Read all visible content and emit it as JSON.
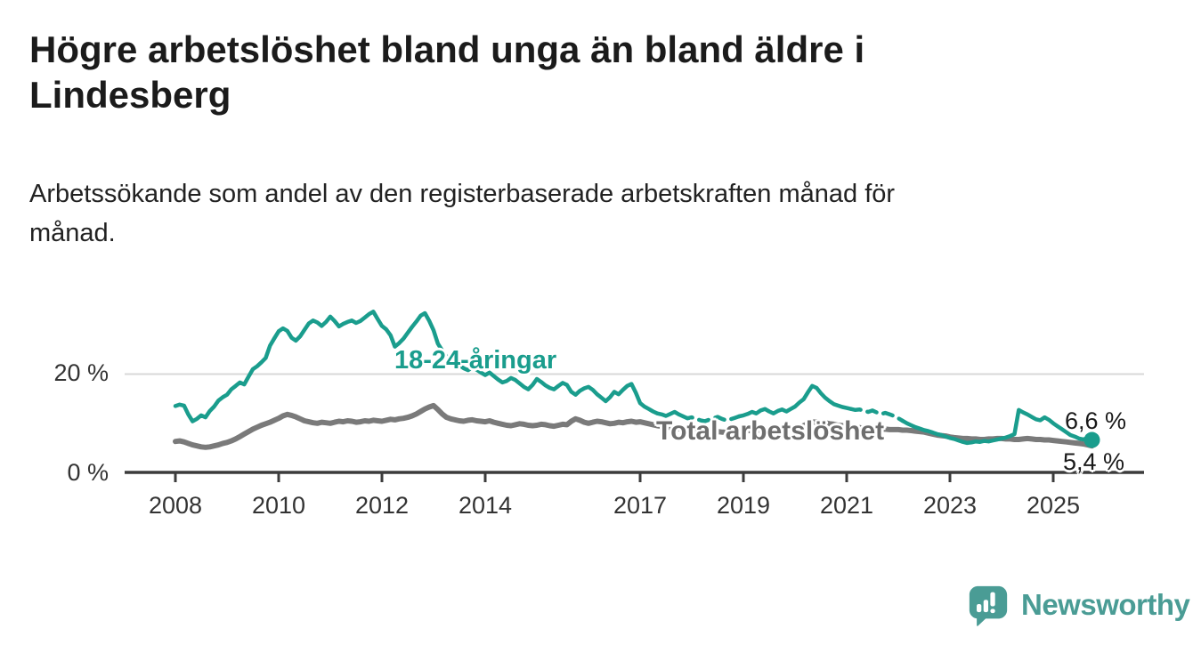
{
  "header": {
    "title_lines": [
      "Högre arbetslöshet bland unga än bland äldre i",
      "Lindesberg"
    ],
    "subtitle_lines": [
      "Arbetssökande som andel av den registerbaserade arbetskraften månad för",
      "månad."
    ]
  },
  "chart_data": {
    "type": "line",
    "title": "Högre arbetslöshet bland unga än bland äldre i Lindesberg",
    "subtitle": "Arbetssökande som andel av den registerbaserade arbetskraften månad för månad.",
    "unit": "%",
    "frequency": "monthly",
    "x_start": {
      "year": 2008,
      "month": 1
    },
    "x_end": {
      "year": 2025,
      "month": 10
    },
    "x_tick_years": [
      2008,
      2010,
      2012,
      2014,
      2017,
      2019,
      2021,
      2023,
      2025
    ],
    "y_ticks": [
      {
        "value": 20,
        "label": "20 %"
      },
      {
        "value": 0,
        "label": "0 %"
      }
    ],
    "ylim": [
      0,
      36
    ],
    "grid": "horizontal line at 20% only",
    "legend_position": "labels-on-lines",
    "series": [
      {
        "name": "18-24-åringar",
        "color": "#1a9d8d",
        "end_label": "6,6 %",
        "end_value": 6.6,
        "end_dot": true,
        "dashed_year_ranges": [
          [
            2017.8,
            2018.95
          ],
          [
            2021.1,
            2022.05
          ]
        ],
        "values": [
          13.5,
          13.8,
          13.6,
          11.8,
          10.4,
          10.9,
          11.6,
          11.2,
          12.5,
          13.4,
          14.6,
          15.3,
          15.8,
          16.9,
          17.6,
          18.3,
          17.9,
          19.5,
          21.0,
          21.6,
          22.4,
          23.3,
          25.8,
          27.3,
          28.7,
          29.3,
          28.8,
          27.4,
          26.8,
          27.7,
          29.0,
          30.3,
          30.9,
          30.5,
          29.8,
          30.6,
          31.7,
          30.8,
          29.7,
          30.2,
          30.6,
          30.9,
          30.4,
          30.8,
          31.5,
          32.2,
          32.7,
          31.2,
          29.8,
          29.1,
          27.9,
          25.6,
          26.3,
          27.2,
          28.4,
          29.6,
          30.7,
          31.9,
          32.4,
          30.8,
          28.9,
          26.2,
          24.8,
          23.6,
          22.8,
          22.2,
          21.8,
          21.2,
          20.8,
          21.4,
          20.9,
          20.3,
          19.8,
          20.3,
          19.6,
          18.9,
          18.3,
          18.6,
          19.2,
          18.8,
          18.1,
          17.4,
          16.9,
          17.8,
          19.0,
          18.4,
          17.7,
          17.2,
          16.9,
          17.6,
          18.2,
          17.8,
          16.4,
          15.8,
          16.6,
          17.1,
          17.4,
          16.8,
          15.9,
          15.2,
          14.5,
          15.3,
          16.4,
          15.9,
          16.8,
          17.6,
          18.0,
          16.2,
          14.1,
          13.4,
          12.9,
          12.4,
          12.0,
          11.8,
          11.5,
          11.9,
          12.3,
          11.8,
          11.4,
          11.0,
          11.2,
          10.9,
          10.6,
          10.4,
          10.7,
          11.0,
          11.3,
          10.9,
          10.6,
          10.8,
          11.1,
          11.4,
          11.6,
          11.9,
          12.3,
          12.0,
          12.6,
          12.9,
          12.4,
          12.0,
          12.5,
          12.8,
          12.4,
          12.9,
          13.4,
          14.2,
          14.9,
          16.3,
          17.6,
          17.2,
          16.1,
          15.2,
          14.5,
          13.9,
          13.6,
          13.3,
          13.1,
          12.9,
          12.7,
          12.8,
          12.5,
          12.3,
          12.6,
          12.2,
          11.9,
          12.1,
          11.8,
          11.5,
          11.0,
          10.5,
          10.0,
          9.6,
          9.2,
          8.9,
          8.6,
          8.4,
          8.1,
          7.8,
          7.6,
          7.3,
          7.0,
          6.8,
          6.5,
          6.2,
          6.0,
          6.1,
          6.3,
          6.2,
          6.4,
          6.3,
          6.5,
          6.7,
          6.9,
          7.1,
          7.4,
          7.8,
          12.7,
          12.2,
          11.8,
          11.3,
          10.8,
          10.6,
          11.2,
          10.7,
          10.0,
          9.4,
          8.8,
          8.2,
          7.6,
          7.3,
          6.9,
          6.7,
          7.0,
          6.6
        ]
      },
      {
        "name": "Total arbetslöshet",
        "color": "#7a7a7a",
        "end_label": "5,4 %",
        "end_value": 5.4,
        "end_dot": false,
        "dashed_year_ranges": [],
        "values": [
          6.3,
          6.4,
          6.2,
          5.9,
          5.6,
          5.4,
          5.2,
          5.1,
          5.2,
          5.4,
          5.6,
          5.9,
          6.1,
          6.4,
          6.8,
          7.3,
          7.8,
          8.3,
          8.8,
          9.2,
          9.6,
          9.9,
          10.2,
          10.6,
          11.0,
          11.5,
          11.8,
          11.6,
          11.3,
          10.9,
          10.5,
          10.3,
          10.1,
          10.0,
          10.2,
          10.1,
          10.0,
          10.2,
          10.4,
          10.3,
          10.5,
          10.4,
          10.2,
          10.3,
          10.5,
          10.4,
          10.6,
          10.5,
          10.4,
          10.6,
          10.8,
          10.7,
          10.9,
          11.0,
          11.2,
          11.5,
          11.9,
          12.4,
          12.9,
          13.3,
          13.6,
          12.8,
          11.9,
          11.2,
          10.9,
          10.7,
          10.5,
          10.4,
          10.6,
          10.7,
          10.5,
          10.4,
          10.3,
          10.5,
          10.2,
          10.0,
          9.8,
          9.6,
          9.5,
          9.7,
          9.9,
          9.8,
          9.6,
          9.5,
          9.6,
          9.8,
          9.7,
          9.5,
          9.4,
          9.6,
          9.8,
          9.7,
          10.4,
          10.9,
          10.6,
          10.2,
          10.0,
          10.2,
          10.4,
          10.3,
          10.1,
          9.9,
          10.0,
          10.2,
          10.1,
          10.3,
          10.4,
          10.2,
          10.3,
          10.1,
          9.9,
          9.7,
          9.5,
          9.4,
          9.2,
          9.1,
          9.0,
          8.9,
          8.8,
          8.7,
          8.6,
          8.5,
          8.5,
          8.4,
          8.4,
          8.3,
          8.3,
          8.2,
          8.2,
          8.3,
          8.3,
          8.4,
          8.4,
          8.5,
          8.5,
          8.6,
          8.6,
          8.7,
          8.7,
          8.6,
          8.6,
          8.7,
          8.7,
          8.8,
          9.0,
          9.2,
          9.5,
          9.9,
          10.2,
          10.3,
          10.2,
          10.1,
          9.9,
          9.8,
          9.6,
          9.5,
          9.4,
          9.3,
          9.2,
          9.1,
          9.0,
          9.0,
          8.9,
          8.9,
          8.8,
          8.8,
          8.7,
          8.7,
          8.7,
          8.6,
          8.6,
          8.5,
          8.4,
          8.3,
          8.2,
          8.0,
          7.8,
          7.6,
          7.5,
          7.4,
          7.2,
          7.1,
          7.0,
          6.9,
          6.9,
          6.8,
          6.8,
          6.7,
          6.7,
          6.8,
          6.8,
          6.9,
          6.9,
          6.8,
          6.8,
          6.7,
          6.7,
          6.8,
          6.9,
          6.8,
          6.7,
          6.7,
          6.6,
          6.6,
          6.5,
          6.4,
          6.3,
          6.2,
          6.1,
          6.0,
          5.9,
          5.8,
          5.6,
          5.4
        ]
      }
    ]
  },
  "footer": {
    "brand": "Newsworthy"
  },
  "colors": {
    "accent_teal": "#1a9d8d",
    "line_gray": "#7a7a7a",
    "label_gray": "#6e6e6e",
    "logo_teal": "#4a9c95",
    "grid": "#d8d8d8",
    "axis": "#3c3c3c",
    "tick_text": "#333333",
    "text": "#1a1a1a",
    "background": "#ffffff"
  }
}
